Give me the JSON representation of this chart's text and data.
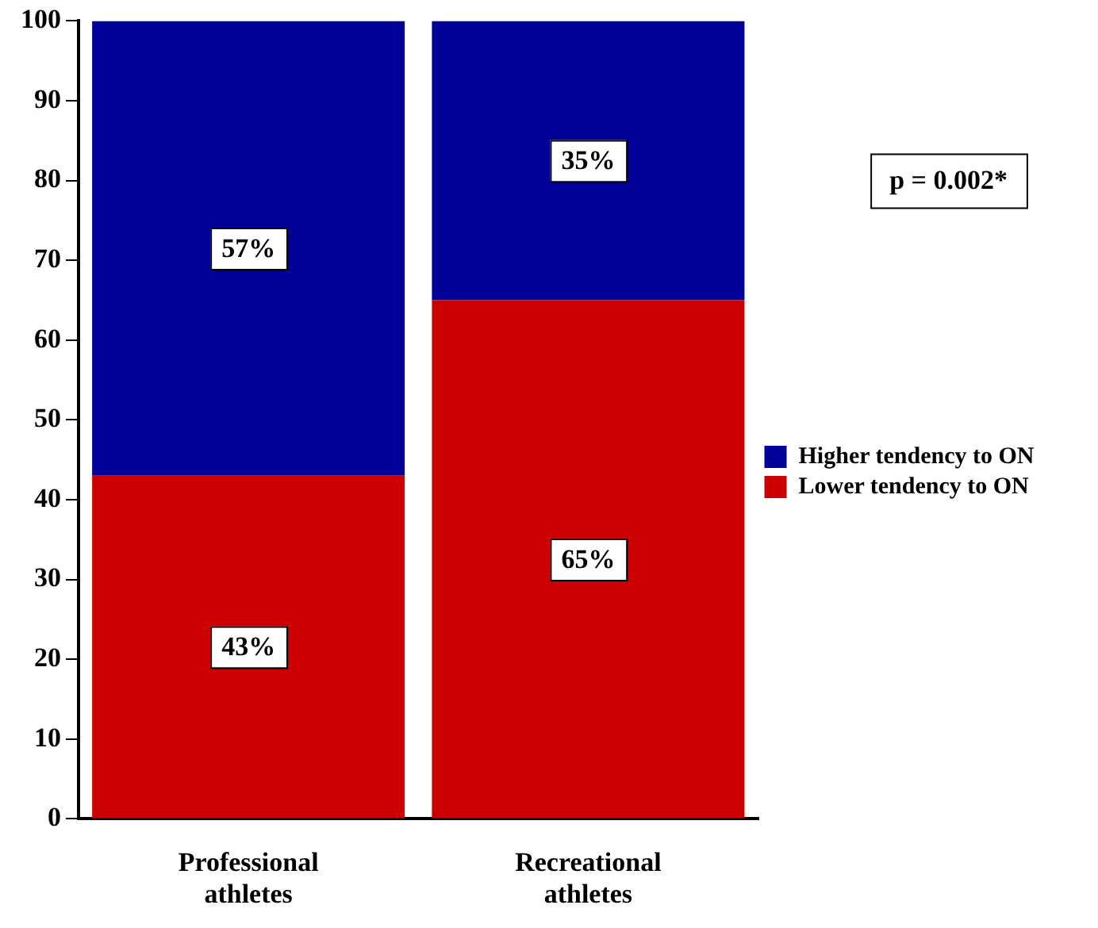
{
  "chart_data": {
    "type": "bar",
    "stacked": true,
    "categories": [
      "Professional athletes",
      "Recreational athletes"
    ],
    "series": [
      {
        "name": "Lower tendency to ON",
        "color": "#cc0000",
        "values": [
          43,
          65
        ],
        "value_labels": [
          "43%",
          "65%"
        ]
      },
      {
        "name": "Higher tendency to ON",
        "color": "#000099",
        "values": [
          57,
          35
        ],
        "value_labels": [
          "57%",
          "35%"
        ]
      }
    ],
    "ylim": [
      0,
      100
    ],
    "yticks": [
      0,
      10,
      20,
      30,
      40,
      50,
      60,
      70,
      80,
      90,
      100
    ],
    "grid": false,
    "legend": "right",
    "annotations": [
      "p = 0.002*"
    ]
  }
}
